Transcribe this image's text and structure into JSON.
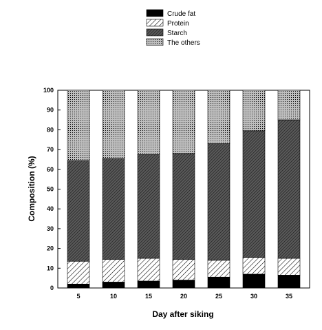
{
  "chart_data": {
    "type": "bar",
    "stacked": true,
    "normalized": true,
    "categories": [
      "5",
      "10",
      "15",
      "20",
      "25",
      "30",
      "35"
    ],
    "series": [
      {
        "name": "Crude fat",
        "pattern": "solid-black",
        "values": [
          2,
          3,
          3.5,
          4,
          5.5,
          7,
          6.5
        ]
      },
      {
        "name": "Protein",
        "pattern": "light-diagonal",
        "values": [
          11.5,
          11.5,
          11.5,
          10.5,
          8.5,
          8.5,
          8.5
        ]
      },
      {
        "name": "Starch",
        "pattern": "dense-diagonal",
        "values": [
          51,
          51,
          52.5,
          53.5,
          59,
          64,
          70
        ]
      },
      {
        "name": "The others",
        "pattern": "crosshatch",
        "values": [
          35.5,
          34.5,
          32.5,
          32,
          27,
          20.5,
          15
        ]
      }
    ],
    "xlabel": "Day after siking",
    "ylabel": "Composition (%)",
    "ylim": [
      0,
      100
    ],
    "yticks": [
      "0",
      "10",
      "20",
      "30",
      "40",
      "50",
      "60",
      "70",
      "80",
      "90",
      "100"
    ],
    "legend": "top-center",
    "grid": false
  }
}
